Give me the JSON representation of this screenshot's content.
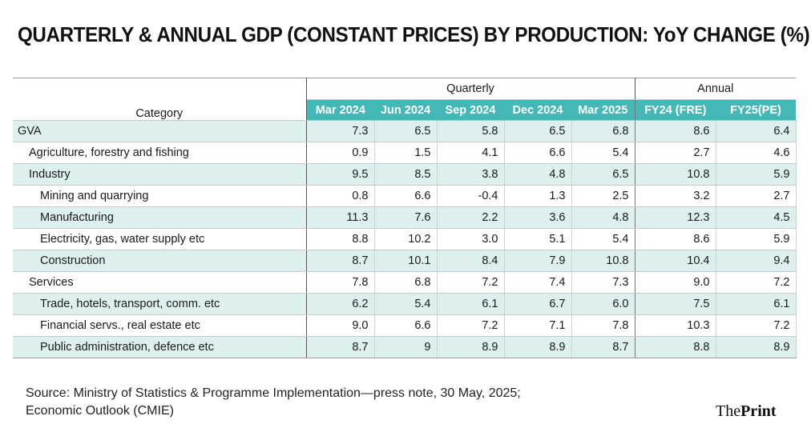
{
  "title": "QUARTERLY & ANNUAL GDP (CONSTANT PRICES) BY PRODUCTION: YoY CHANGE (%)",
  "chart_data": {
    "type": "table",
    "title": "QUARTERLY & ANNUAL GDP (CONSTANT PRICES) BY PRODUCTION: YoY CHANGE (%)",
    "category_header": "Category",
    "column_groups": [
      {
        "label": "Quarterly",
        "span": 5
      },
      {
        "label": "Annual",
        "span": 2
      }
    ],
    "columns": [
      "Mar 2024",
      "Jun 2024",
      "Sep 2024",
      "Dec 2024",
      "Mar 2025",
      "FY24 (FRE)",
      "FY25(PE)"
    ],
    "rows": [
      {
        "label": "GVA",
        "level": 0,
        "values": [
          "7.3",
          "6.5",
          "5.8",
          "6.5",
          "6.8",
          "8.6",
          "6.4"
        ]
      },
      {
        "label": "Agriculture, forestry and fishing",
        "level": 1,
        "values": [
          "0.9",
          "1.5",
          "4.1",
          "6.6",
          "5.4",
          "2.7",
          "4.6"
        ]
      },
      {
        "label": "Industry",
        "level": 1,
        "values": [
          "9.5",
          "8.5",
          "3.8",
          "4.8",
          "6.5",
          "10.8",
          "5.9"
        ]
      },
      {
        "label": "Mining and quarrying",
        "level": 2,
        "values": [
          "0.8",
          "6.6",
          "-0.4",
          "1.3",
          "2.5",
          "3.2",
          "2.7"
        ]
      },
      {
        "label": "Manufacturing",
        "level": 2,
        "values": [
          "11.3",
          "7.6",
          "2.2",
          "3.6",
          "4.8",
          "12.3",
          "4.5"
        ]
      },
      {
        "label": "Electricity, gas, water supply etc",
        "level": 2,
        "values": [
          "8.8",
          "10.2",
          "3.0",
          "5.1",
          "5.4",
          "8.6",
          "5.9"
        ]
      },
      {
        "label": "Construction",
        "level": 2,
        "values": [
          "8.7",
          "10.1",
          "8.4",
          "7.9",
          "10.8",
          "10.4",
          "9.4"
        ]
      },
      {
        "label": "Services",
        "level": 1,
        "values": [
          "7.8",
          "6.8",
          "7.2",
          "7.4",
          "7.3",
          "9.0",
          "7.2"
        ]
      },
      {
        "label": "Trade, hotels, transport, comm. etc",
        "level": 2,
        "values": [
          "6.2",
          "5.4",
          "6.1",
          "6.7",
          "6.0",
          "7.5",
          "6.1"
        ]
      },
      {
        "label": "Financial servs., real estate etc",
        "level": 2,
        "values": [
          "9.0",
          "6.6",
          "7.2",
          "7.1",
          "7.8",
          "10.3",
          "7.2"
        ]
      },
      {
        "label": "Public administration, defence etc",
        "level": 2,
        "values": [
          "8.7",
          "9",
          "8.9",
          "8.9",
          "8.7",
          "8.8",
          "8.9"
        ]
      }
    ]
  },
  "source": {
    "line1": "Source: Ministry of Statistics & Programme Implementation—press note, 30 May, 2025;",
    "line2": "Economic Outlook (CMIE)"
  },
  "logo": {
    "part1": "The",
    "part2": "Print"
  },
  "colors": {
    "header_teal": "#43b8b6",
    "stripe": "#ddf0ef"
  }
}
